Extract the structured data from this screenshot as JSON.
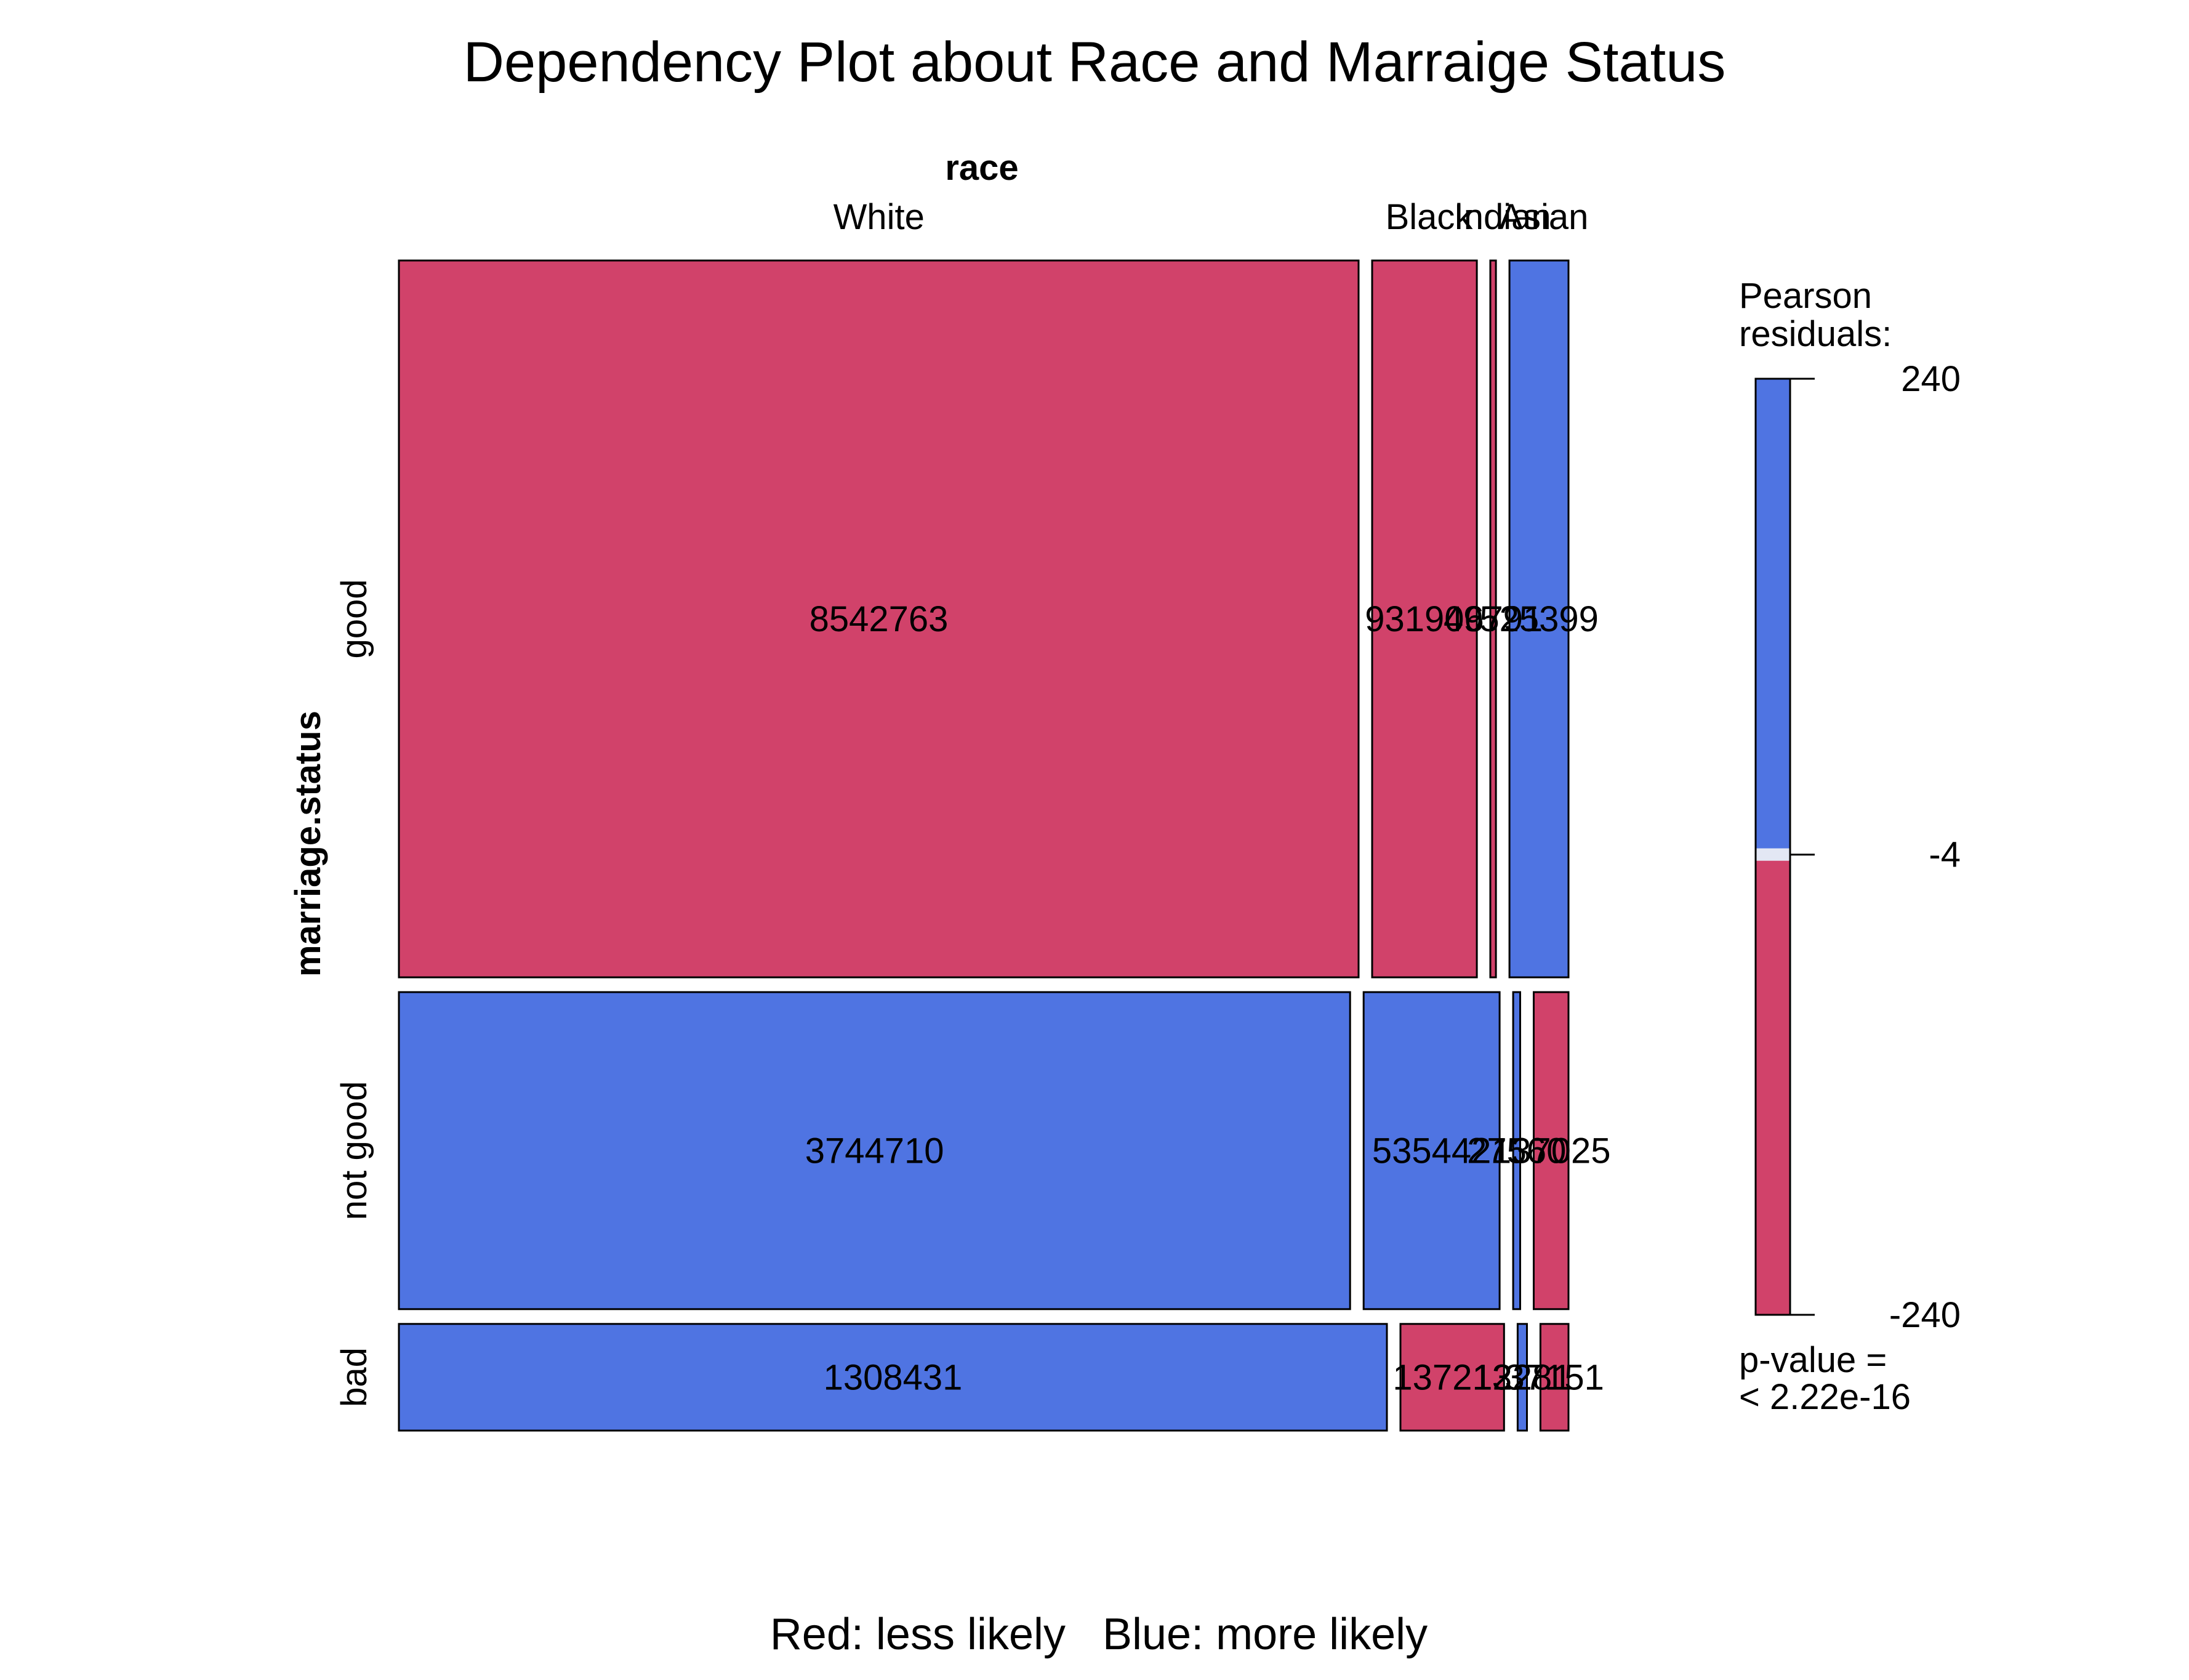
{
  "chart_data": {
    "type": "mosaic",
    "title": "Dependency Plot about Race and Marraige Status",
    "column_variable": "race",
    "row_variable": "marriage.status",
    "columns": [
      "White",
      "Black",
      "Indian",
      "Asian"
    ],
    "rows": [
      "good",
      "not good",
      "bad"
    ],
    "counts": [
      [
        8542763,
        931906,
        49791,
        525399
      ],
      [
        3744710,
        535442,
        27560,
        137025
      ],
      [
        1308431,
        137213,
        12281,
        37151
      ]
    ],
    "cell_labels": [
      [
        "8542763",
        "931906",
        "49791",
        "525399"
      ],
      [
        "3744710",
        "535442",
        "27560",
        "137025"
      ],
      [
        "1308431",
        "137213",
        "12281",
        "37151"
      ]
    ],
    "residual_sign": [
      [
        "negative",
        "negative",
        "negative",
        "positive"
      ],
      [
        "positive",
        "positive",
        "positive",
        "negative"
      ],
      [
        "positive",
        "negative",
        "positive",
        "negative"
      ]
    ],
    "legend": {
      "title": "Pearson residuals:",
      "max": 240,
      "mid": -4,
      "min": -240,
      "tick_labels": [
        "240",
        "-4",
        "-240"
      ],
      "p_value_label": "p-value =",
      "p_value": "< 2.22e-16"
    },
    "footer": "Red: less likely   Blue: more likely",
    "colors": {
      "positive": "#4F74E2",
      "negative": "#D1426A",
      "outline": "#000000"
    }
  }
}
